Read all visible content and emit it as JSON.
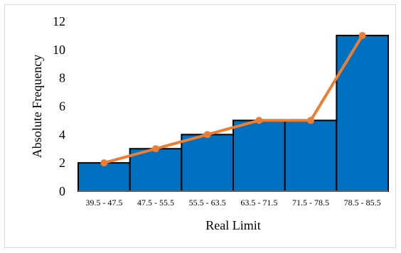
{
  "chart_data": {
    "type": "bar",
    "categories": [
      "39.5 - 47.5",
      "47.5 - 55.5",
      "55.5 - 63.5",
      "63.5 - 71.5",
      "71.5 - 78.5",
      "78.5 - 85.5"
    ],
    "series": [
      {
        "values": [
          2,
          3,
          4,
          5,
          5,
          11
        ],
        "kind": "bar"
      },
      {
        "values": [
          2,
          3,
          4,
          5,
          5,
          11
        ],
        "kind": "line"
      }
    ],
    "xlabel": "Real Limit",
    "ylabel": "Absolute Frequency",
    "ylim": [
      0,
      12
    ],
    "yticks": [
      "0",
      "2",
      "4",
      "6",
      "8",
      "10",
      "12"
    ],
    "grid": false,
    "colors": {
      "bar_fill": "#0070c0",
      "bar_stroke": "#000000",
      "line": "#ed7d31",
      "marker": "#ed7d31",
      "axis": "#bfbfbf"
    }
  }
}
